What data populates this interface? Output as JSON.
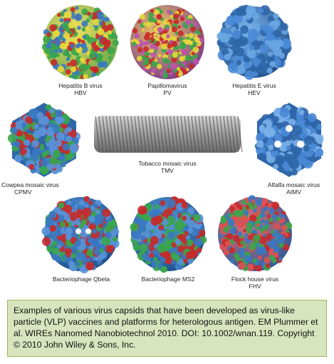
{
  "viruses": [
    {
      "name": "Hepatitis B virus",
      "abbr": "HBV"
    },
    {
      "name": "Papillomavirus",
      "abbr": "PV"
    },
    {
      "name": "Hepatitis E virus",
      "abbr": "HEV"
    },
    {
      "name": "Cowpea mosaic virus",
      "abbr": "CPMV"
    },
    {
      "name": "Tobacco mosaic virus",
      "abbr": "TMV"
    },
    {
      "name": "Alfalfa mosaic virus",
      "abbr": "AIMV"
    },
    {
      "name": "Bacteriophage Qbeta",
      "abbr": ""
    },
    {
      "name": "Bacteriophage MS2",
      "abbr": ""
    },
    {
      "name": "Flock house virus",
      "abbr": "FHV"
    }
  ],
  "caption": "Examples of various virus capsids that have been developed as virus-like particle (VLP) vaccines and platforms for heterologous antigen. EM Plummer et al. WIREs Nanomed Nanobiotechnol 2010. DOI: 10.1002/wnan.119. Copyright © 2010 John Wiley & Sons, Inc.",
  "colors": {
    "blue": "#3a78c2",
    "red": "#c62a2a",
    "green": "#3aa64a",
    "yellow": "#e8d83a",
    "magenta": "#c050b0",
    "gray": "#8a8a8a",
    "caption_bg": "#d7e4bd",
    "caption_border": "#9bbb59"
  }
}
